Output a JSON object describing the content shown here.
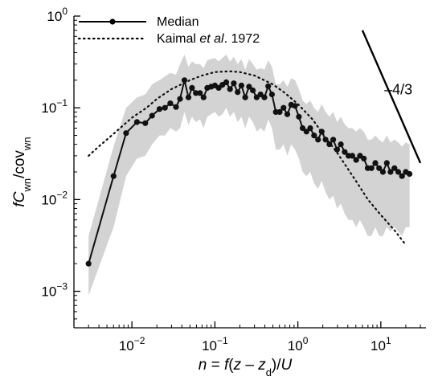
{
  "chart_data": {
    "type": "line",
    "scale": {
      "x": "log",
      "y": "log"
    },
    "xlim": [
      0.002,
      35
    ],
    "ylim": [
      0.0004,
      1
    ],
    "xticks": [
      0.01,
      0.1,
      1,
      10
    ],
    "yticks": [
      0.001,
      0.01,
      0.1,
      1
    ],
    "xtick_labels": [
      {
        "base": "10",
        "exp": "−2"
      },
      {
        "base": "10",
        "exp": "−1"
      },
      {
        "base": "10",
        "exp": "0"
      },
      {
        "base": "10",
        "exp": "1"
      }
    ],
    "ytick_labels": [
      {
        "base": "10",
        "exp": "−3"
      },
      {
        "base": "10",
        "exp": "−2"
      },
      {
        "base": "10",
        "exp": "−1"
      },
      {
        "base": "10",
        "exp": "0"
      }
    ],
    "xlabel": {
      "parts": [
        {
          "text": "n",
          "italic": true
        },
        {
          "text": " = "
        },
        {
          "text": "f",
          "italic": true
        },
        {
          "text": "("
        },
        {
          "text": "z",
          "italic": true
        },
        {
          "text": " – "
        },
        {
          "text": "z",
          "italic": true
        },
        {
          "text": "d",
          "sub": true
        },
        {
          "text": ")/"
        },
        {
          "text": "U",
          "italic": true
        }
      ]
    },
    "ylabel": {
      "parts": [
        {
          "text": "f",
          "italic": true
        },
        {
          "text": "C",
          "italic": true
        },
        {
          "text": "wn",
          "sub": true
        },
        {
          "text": "/cov"
        },
        {
          "text": "wn",
          "sub": true
        }
      ]
    },
    "legend": {
      "position": "top-left",
      "entries": [
        {
          "label_parts": [
            {
              "text": "Median"
            }
          ],
          "style": "solid-line-markers"
        },
        {
          "label_parts": [
            {
              "text": "Kaimal "
            },
            {
              "text": "et al",
              "italic": true
            },
            {
              "text": ". 1972"
            }
          ],
          "style": "dotted"
        }
      ]
    },
    "slope_label": "–4/3",
    "slope_line": {
      "x": [
        6.0,
        30.0
      ],
      "y": [
        0.7,
        0.025
      ]
    },
    "series": [
      {
        "name": "Median",
        "style": "solid-line-markers",
        "color": "#111111",
        "x": [
          0.003,
          0.006,
          0.0085,
          0.0115,
          0.0145,
          0.0175,
          0.0215,
          0.025,
          0.029,
          0.034,
          0.038,
          0.043,
          0.048,
          0.053,
          0.059,
          0.066,
          0.073,
          0.081,
          0.09,
          0.1,
          0.111,
          0.123,
          0.137,
          0.152,
          0.169,
          0.188,
          0.209,
          0.232,
          0.258,
          0.287,
          0.319,
          0.355,
          0.395,
          0.439,
          0.488,
          0.543,
          0.604,
          0.672,
          0.747,
          0.831,
          0.924,
          1.03,
          1.14,
          1.27,
          1.41,
          1.57,
          1.75,
          1.94,
          2.16,
          2.4,
          2.67,
          2.97,
          3.3,
          3.67,
          4.08,
          4.54,
          5.05,
          5.61,
          6.24,
          6.94,
          7.72,
          8.58,
          9.54,
          10.6,
          11.8,
          13.1,
          14.6,
          16.2,
          18.0,
          20.0,
          22.2
        ],
        "y": [
          0.002,
          0.018,
          0.053,
          0.07,
          0.068,
          0.082,
          0.097,
          0.1,
          0.112,
          0.102,
          0.125,
          0.2,
          0.13,
          0.165,
          0.145,
          0.145,
          0.13,
          0.165,
          0.17,
          0.175,
          0.165,
          0.178,
          0.19,
          0.16,
          0.185,
          0.148,
          0.175,
          0.13,
          0.17,
          0.155,
          0.13,
          0.14,
          0.13,
          0.172,
          0.14,
          0.09,
          0.09,
          0.1,
          0.085,
          0.108,
          0.105,
          0.08,
          0.06,
          0.055,
          0.06,
          0.05,
          0.045,
          0.055,
          0.045,
          0.04,
          0.045,
          0.035,
          0.04,
          0.033,
          0.03,
          0.03,
          0.027,
          0.03,
          0.028,
          0.022,
          0.022,
          0.025,
          0.022,
          0.02,
          0.025,
          0.02,
          0.022,
          0.02,
          0.018,
          0.02,
          0.019
        ]
      },
      {
        "name": "Kaimal et al. 1972",
        "style": "dotted",
        "color": "#111111",
        "x": [
          0.003,
          0.004,
          0.006,
          0.01,
          0.015,
          0.02,
          0.03,
          0.05,
          0.07,
          0.1,
          0.15,
          0.2,
          0.3,
          0.5,
          0.7,
          1.0,
          1.5,
          2.0,
          3.0,
          5.0,
          7.0,
          10.0,
          15.0,
          20.0
        ],
        "y": [
          0.03,
          0.038,
          0.052,
          0.078,
          0.1,
          0.125,
          0.16,
          0.2,
          0.225,
          0.245,
          0.25,
          0.245,
          0.225,
          0.18,
          0.145,
          0.11,
          0.075,
          0.052,
          0.032,
          0.016,
          0.01,
          0.0068,
          0.0045,
          0.0032
        ]
      },
      {
        "name": "",
        "style": "band",
        "color": "#d3d3d3",
        "x": [
          0.003,
          0.006,
          0.0085,
          0.0115,
          0.0145,
          0.0175,
          0.0215,
          0.025,
          0.029,
          0.034,
          0.038,
          0.043,
          0.048,
          0.053,
          0.059,
          0.066,
          0.073,
          0.081,
          0.09,
          0.1,
          0.111,
          0.123,
          0.137,
          0.152,
          0.169,
          0.188,
          0.209,
          0.232,
          0.258,
          0.287,
          0.319,
          0.355,
          0.395,
          0.439,
          0.488,
          0.543,
          0.604,
          0.672,
          0.747,
          0.831,
          0.924,
          1.03,
          1.14,
          1.27,
          1.41,
          1.57,
          1.75,
          1.94,
          2.16,
          2.4,
          2.67,
          2.97,
          3.3,
          3.67,
          4.08,
          4.54,
          5.05,
          5.61,
          6.24,
          6.94,
          7.72,
          8.58,
          9.54,
          10.6,
          11.8,
          13.1,
          14.6,
          16.2,
          18.0,
          20.0,
          22.2
        ],
        "lower": [
          0.0009,
          0.005,
          0.018,
          0.028,
          0.03,
          0.04,
          0.05,
          0.05,
          0.06,
          0.055,
          0.06,
          0.09,
          0.065,
          0.08,
          0.07,
          0.075,
          0.06,
          0.08,
          0.085,
          0.09,
          0.08,
          0.085,
          0.1,
          0.08,
          0.09,
          0.07,
          0.08,
          0.06,
          0.08,
          0.07,
          0.055,
          0.06,
          0.055,
          0.075,
          0.06,
          0.035,
          0.035,
          0.04,
          0.03,
          0.04,
          0.035,
          0.028,
          0.02,
          0.018,
          0.02,
          0.015,
          0.013,
          0.016,
          0.012,
          0.01,
          0.011,
          0.008,
          0.009,
          0.007,
          0.006,
          0.006,
          0.005,
          0.006,
          0.005,
          0.004,
          0.004,
          0.005,
          0.004,
          0.004,
          0.005,
          0.0045,
          0.005,
          0.0045,
          0.004,
          0.005,
          0.005
        ],
        "upper": [
          0.004,
          0.038,
          0.1,
          0.13,
          0.14,
          0.18,
          0.2,
          0.22,
          0.24,
          0.23,
          0.3,
          0.38,
          0.28,
          0.32,
          0.3,
          0.3,
          0.27,
          0.33,
          0.34,
          0.35,
          0.32,
          0.35,
          0.38,
          0.32,
          0.36,
          0.3,
          0.34,
          0.26,
          0.34,
          0.3,
          0.26,
          0.27,
          0.26,
          0.33,
          0.28,
          0.18,
          0.18,
          0.2,
          0.17,
          0.21,
          0.2,
          0.16,
          0.12,
          0.11,
          0.12,
          0.1,
          0.09,
          0.11,
          0.09,
          0.08,
          0.09,
          0.07,
          0.08,
          0.066,
          0.06,
          0.06,
          0.055,
          0.06,
          0.055,
          0.045,
          0.045,
          0.05,
          0.045,
          0.042,
          0.05,
          0.042,
          0.045,
          0.042,
          0.038,
          0.042,
          0.04
        ]
      }
    ]
  }
}
